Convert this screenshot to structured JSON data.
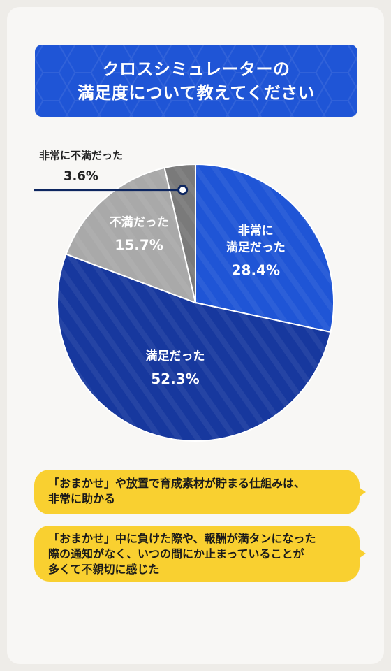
{
  "title": "クロスシミュレーターの\n満足度について教えてください",
  "chart_data": {
    "type": "pie",
    "title": "クロスシミュレーターの満足度について教えてください",
    "slices": [
      {
        "label": "非常に満足だった",
        "value": 28.4,
        "value_text": "28.4%",
        "color": "#1f55d6"
      },
      {
        "label": "満足だった",
        "value": 52.3,
        "value_text": "52.3%",
        "color": "#17389e"
      },
      {
        "label": "不満だった",
        "value": 15.7,
        "value_text": "15.7%",
        "color": "#a9a9a9"
      },
      {
        "label": "非常に不満だった",
        "value": 3.6,
        "value_text": "3.6%",
        "color": "#7a7a7a"
      }
    ]
  },
  "comments": [
    {
      "text": "「おまかせ」や放置で育成素材が貯まる仕組みは、\n非常に助かる"
    },
    {
      "text": "「おまかせ」中に負けた際や、報酬が満タンになった\n際の通知がなく、いつの間にか止まっていることが\n多くて不親切に感じた"
    }
  ],
  "colors": {
    "accent": "#1f55d6",
    "dark_accent": "#17389e",
    "bubble": "#f9d030",
    "leader": "#0d2660"
  }
}
